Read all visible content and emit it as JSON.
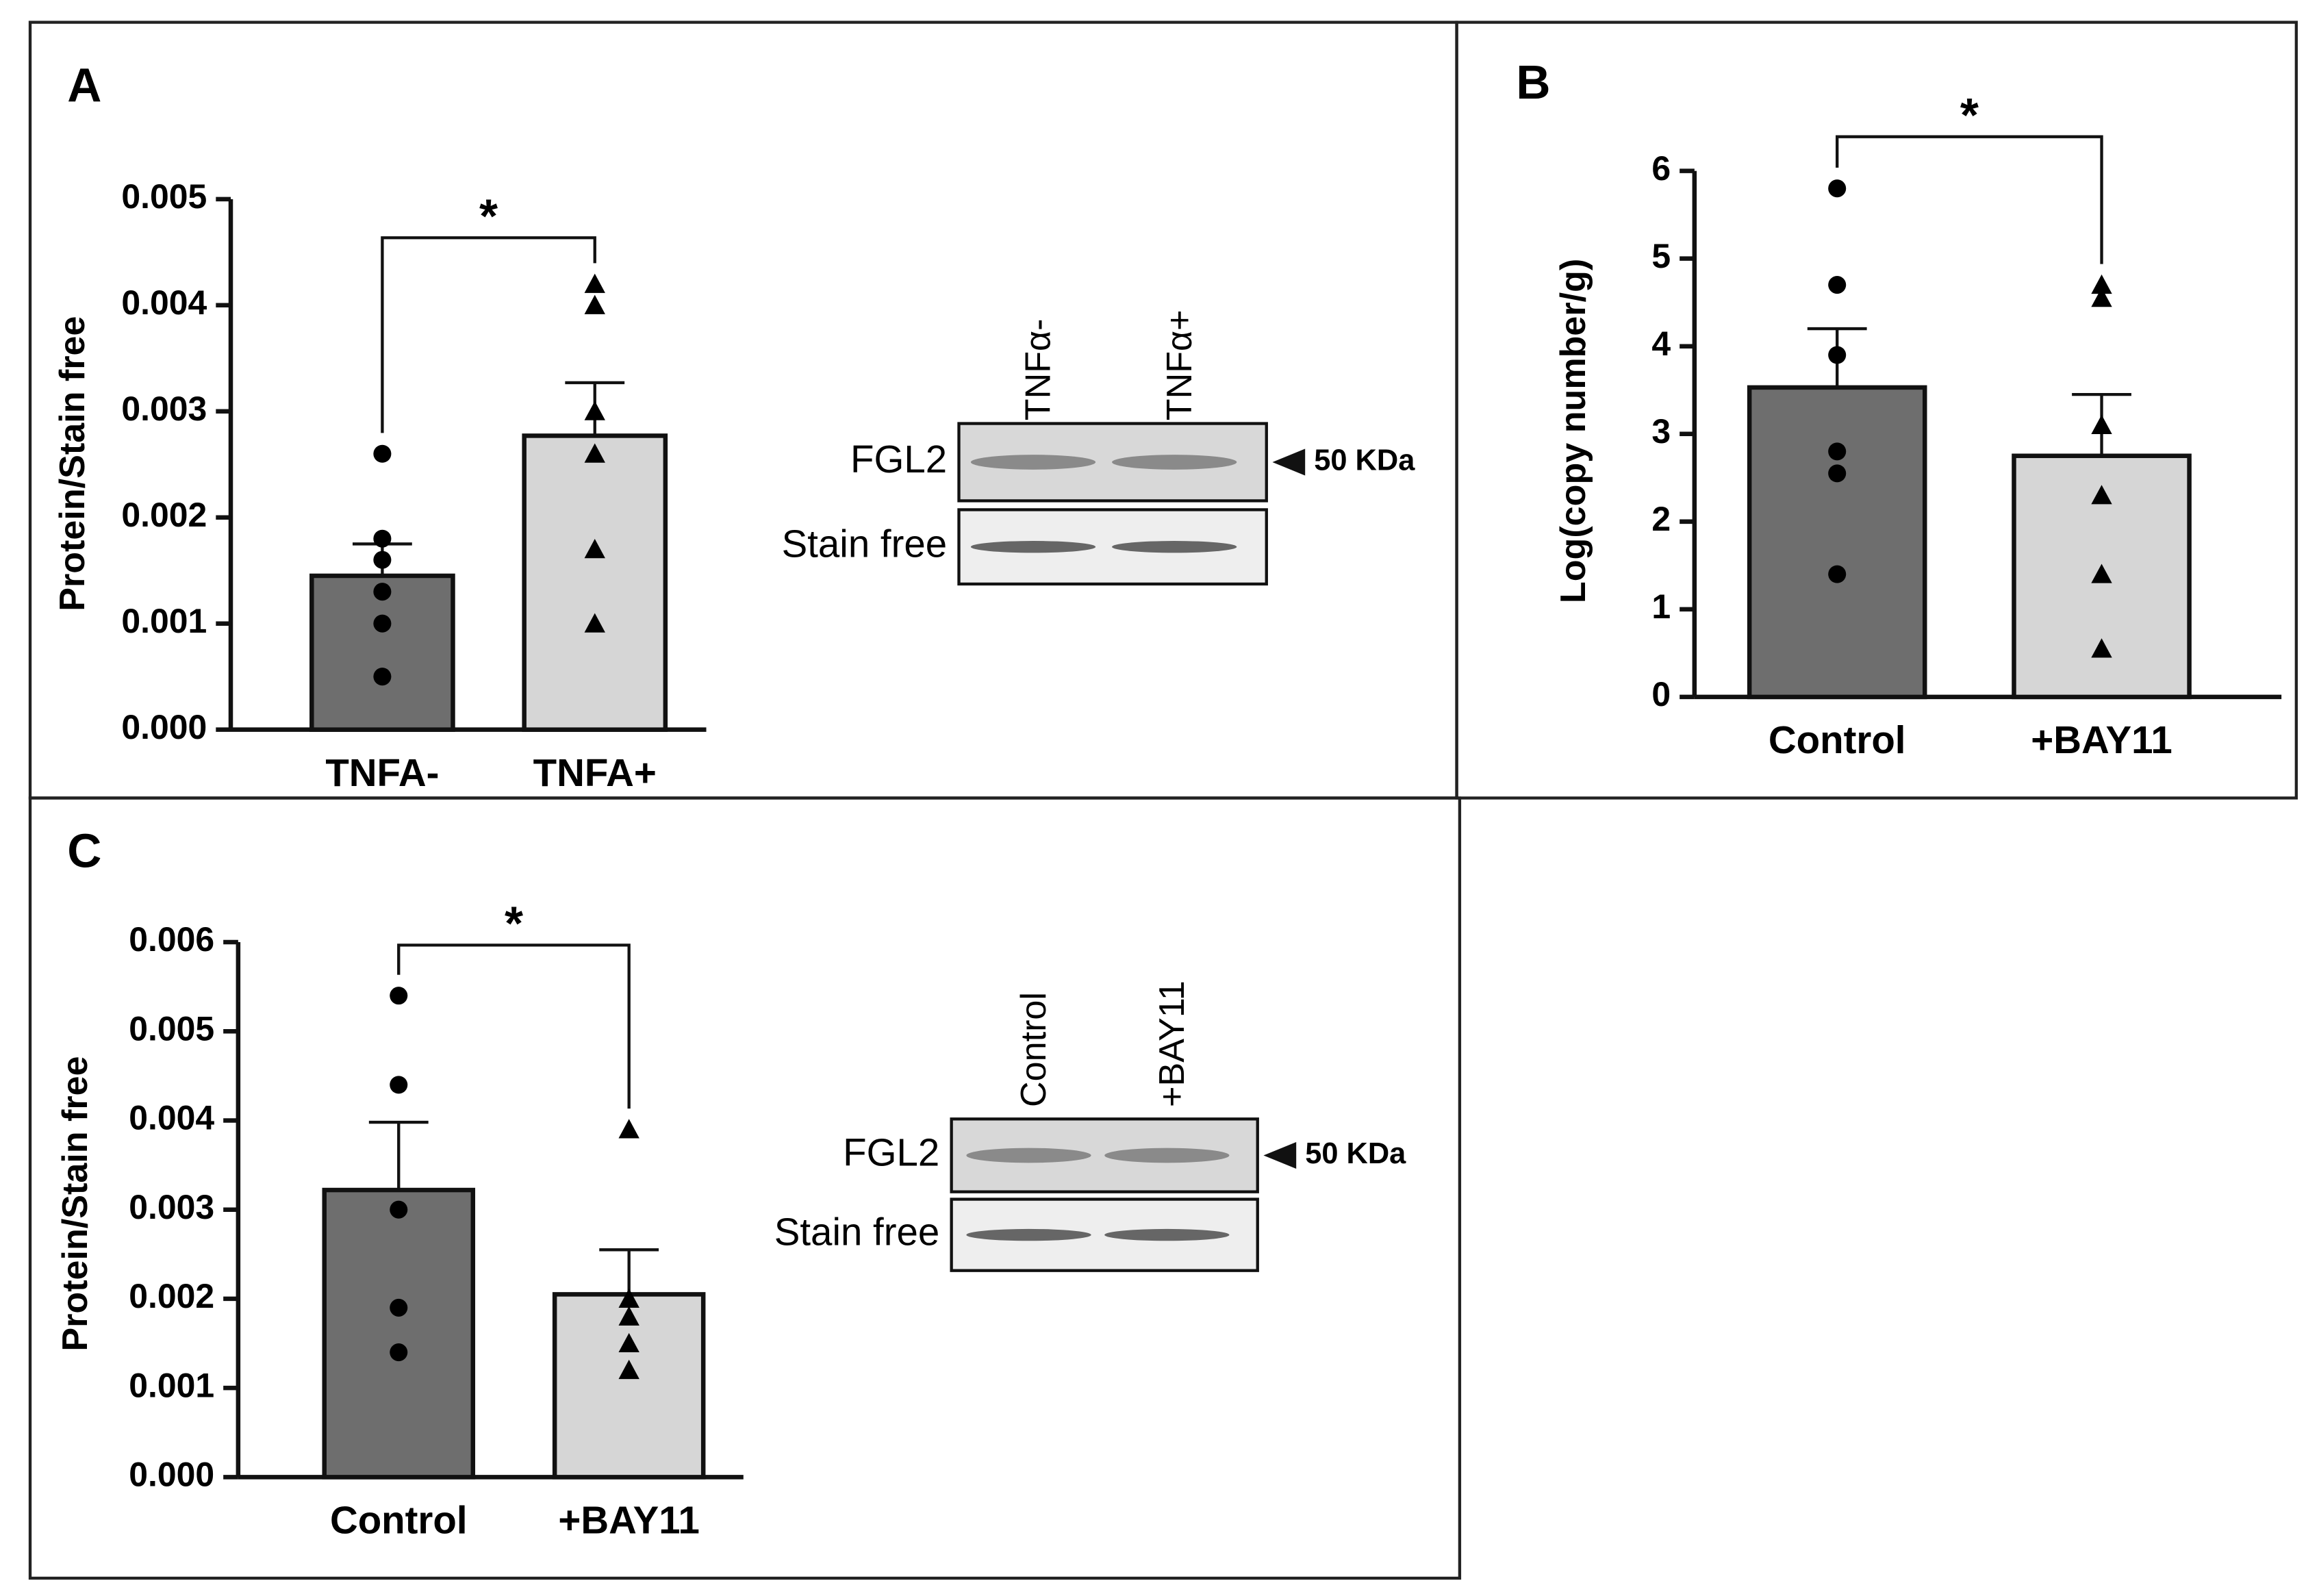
{
  "chart_data": [
    {
      "type": "bar",
      "panel": "A",
      "ylabel": "Protein/Stain free",
      "annotation": "*",
      "categories": [
        "TNFA-",
        "TNFA+"
      ],
      "values": [
        0.00145,
        0.00277
      ],
      "errors": [
        0.0003,
        0.0005
      ],
      "points": [
        [
          0.0026,
          0.0018,
          0.0016,
          0.0013,
          0.001,
          0.0005
        ],
        [
          0.0042,
          0.004,
          0.003,
          0.0026,
          0.0017,
          0.001
        ]
      ],
      "colors": [
        "#6e6e6e",
        "#d6d6d6"
      ],
      "markers": [
        "circle",
        "triangle"
      ],
      "ylim": [
        0,
        0.005
      ],
      "yticks": [
        {
          "value": 0,
          "label": "0.000"
        },
        0.001,
        0.002,
        0.003,
        0.004,
        0.005
      ],
      "blot": {
        "lanes": [
          "TNFα-",
          "TNFα+"
        ],
        "rows": [
          "FGL2",
          "Stain free"
        ],
        "marker": "50 KDa"
      }
    },
    {
      "type": "bar",
      "panel": "B",
      "ylabel": "Log(copy number/g)",
      "annotation": "*",
      "categories": [
        "Control",
        "+BAY11"
      ],
      "values": [
        3.53,
        2.75
      ],
      "errors": [
        0.67,
        0.7
      ],
      "points": [
        [
          5.8,
          4.7,
          3.9,
          2.8,
          2.55,
          1.4
        ],
        [
          4.7,
          4.55,
          3.1,
          2.3,
          1.4,
          0.55
        ]
      ],
      "colors": [
        "#6e6e6e",
        "#d6d6d6"
      ],
      "markers": [
        "circle",
        "triangle"
      ],
      "ylim": [
        0,
        6
      ],
      "yticks": [
        0,
        1,
        2,
        3,
        4,
        5,
        6
      ]
    },
    {
      "type": "bar",
      "panel": "C",
      "ylabel": "Protein/Stain free",
      "annotation": "*",
      "categories": [
        "Control",
        "+BAY11"
      ],
      "values": [
        0.00322,
        0.00205
      ],
      "errors": [
        0.00076,
        0.0005
      ],
      "points": [
        [
          0.0054,
          0.0044,
          0.003,
          0.0019,
          0.0014
        ],
        [
          0.0039,
          0.002,
          0.0018,
          0.0015,
          0.0012
        ]
      ],
      "colors": [
        "#6e6e6e",
        "#d6d6d6"
      ],
      "markers": [
        "circle",
        "triangle"
      ],
      "ylim": [
        0,
        0.006
      ],
      "yticks": [
        {
          "value": 0,
          "label": "0.000"
        },
        0.001,
        0.002,
        0.003,
        0.004,
        0.005,
        0.006
      ],
      "blot": {
        "lanes": [
          "Control",
          "+BAY11"
        ],
        "rows": [
          "FGL2",
          "Stain free"
        ],
        "marker": "50 KDa"
      }
    }
  ]
}
